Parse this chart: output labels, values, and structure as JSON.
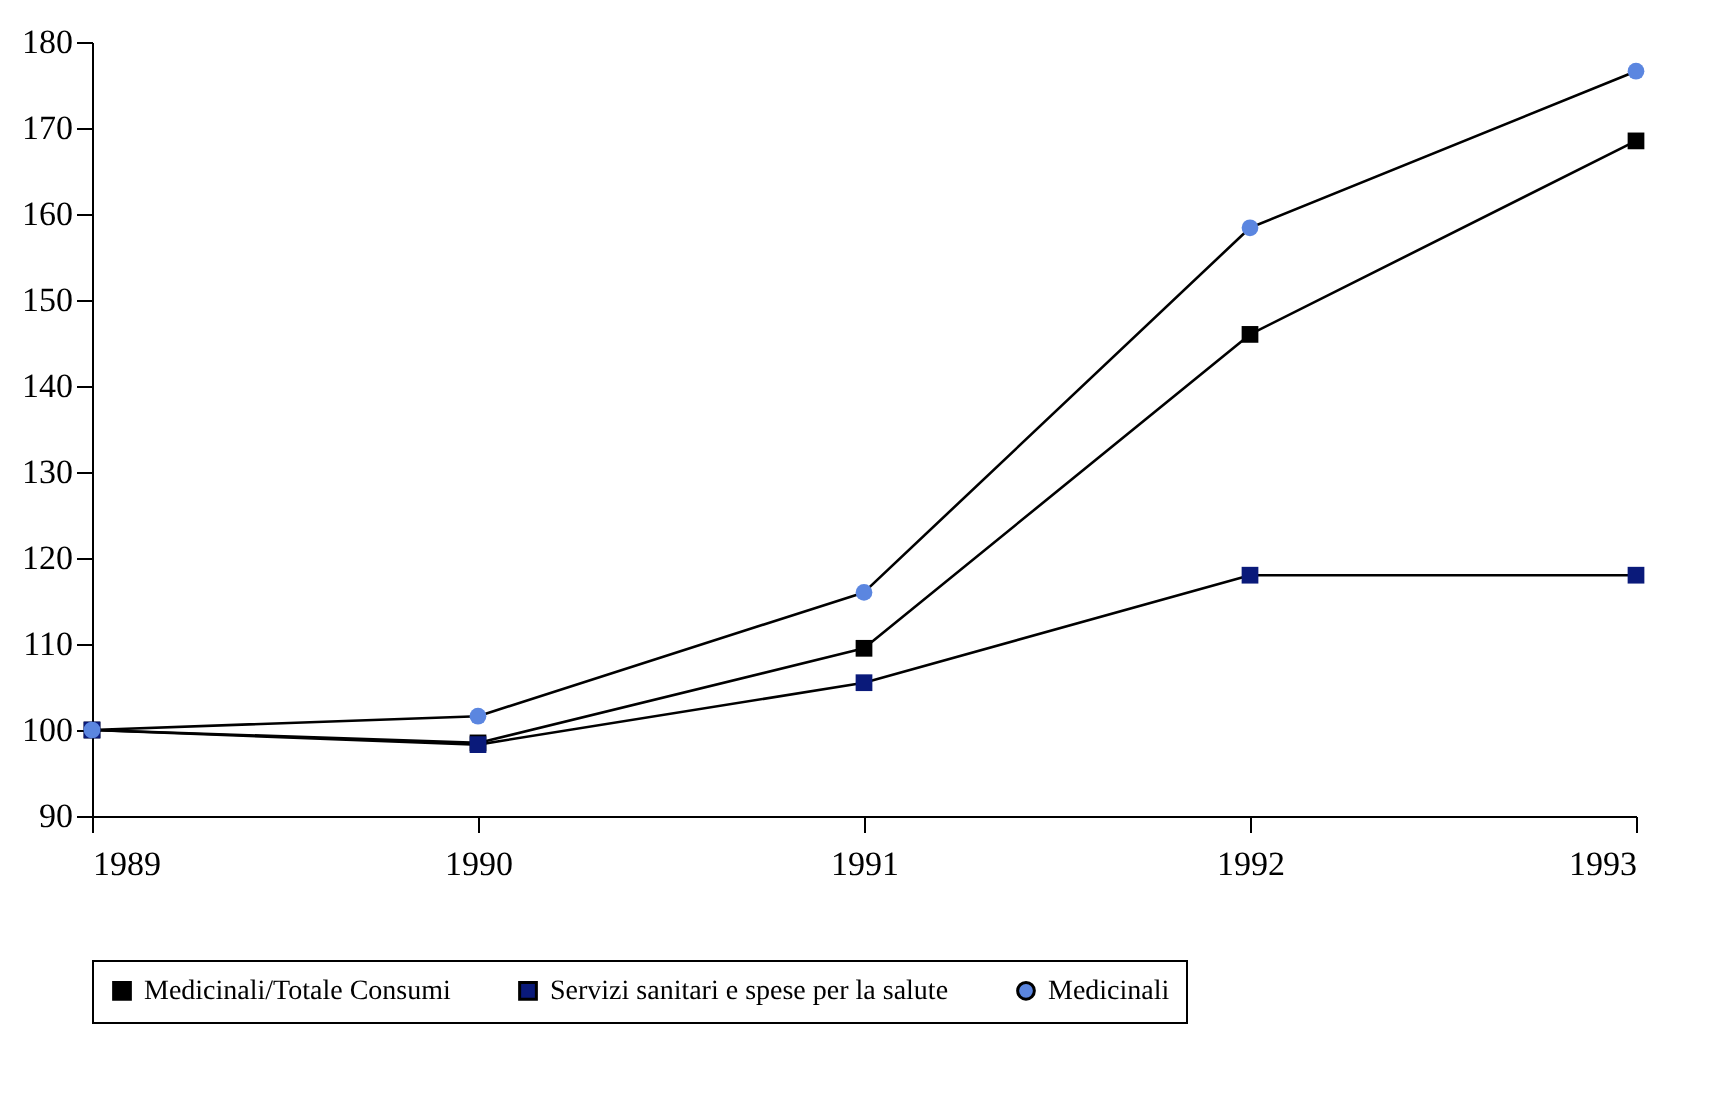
{
  "chart_data": {
    "type": "line",
    "x": [
      1989,
      1990,
      1991,
      1992,
      1993
    ],
    "xlim": [
      1989,
      1993
    ],
    "xticks": [
      1989,
      1990,
      1991,
      1992,
      1993
    ],
    "ylim": [
      90,
      180
    ],
    "yticks": [
      90,
      100,
      110,
      120,
      130,
      140,
      150,
      160,
      170,
      180
    ],
    "grid": false,
    "legend": "bottom",
    "series": [
      {
        "name": "Medicinali/Totale Consumi",
        "color": "#000000",
        "marker": "square",
        "values": [
          100,
          98.5,
          109.5,
          146,
          168.5
        ]
      },
      {
        "name": "Servizi sanitari e spese per la salute",
        "color": "#0a1a7a",
        "marker": "square",
        "values": [
          100,
          98.3,
          105.5,
          118,
          118
        ]
      },
      {
        "name": "Medicinali",
        "color": "#5b86e0",
        "marker": "circle",
        "values": [
          100,
          101.6,
          116,
          158.4,
          176.6
        ]
      }
    ]
  }
}
